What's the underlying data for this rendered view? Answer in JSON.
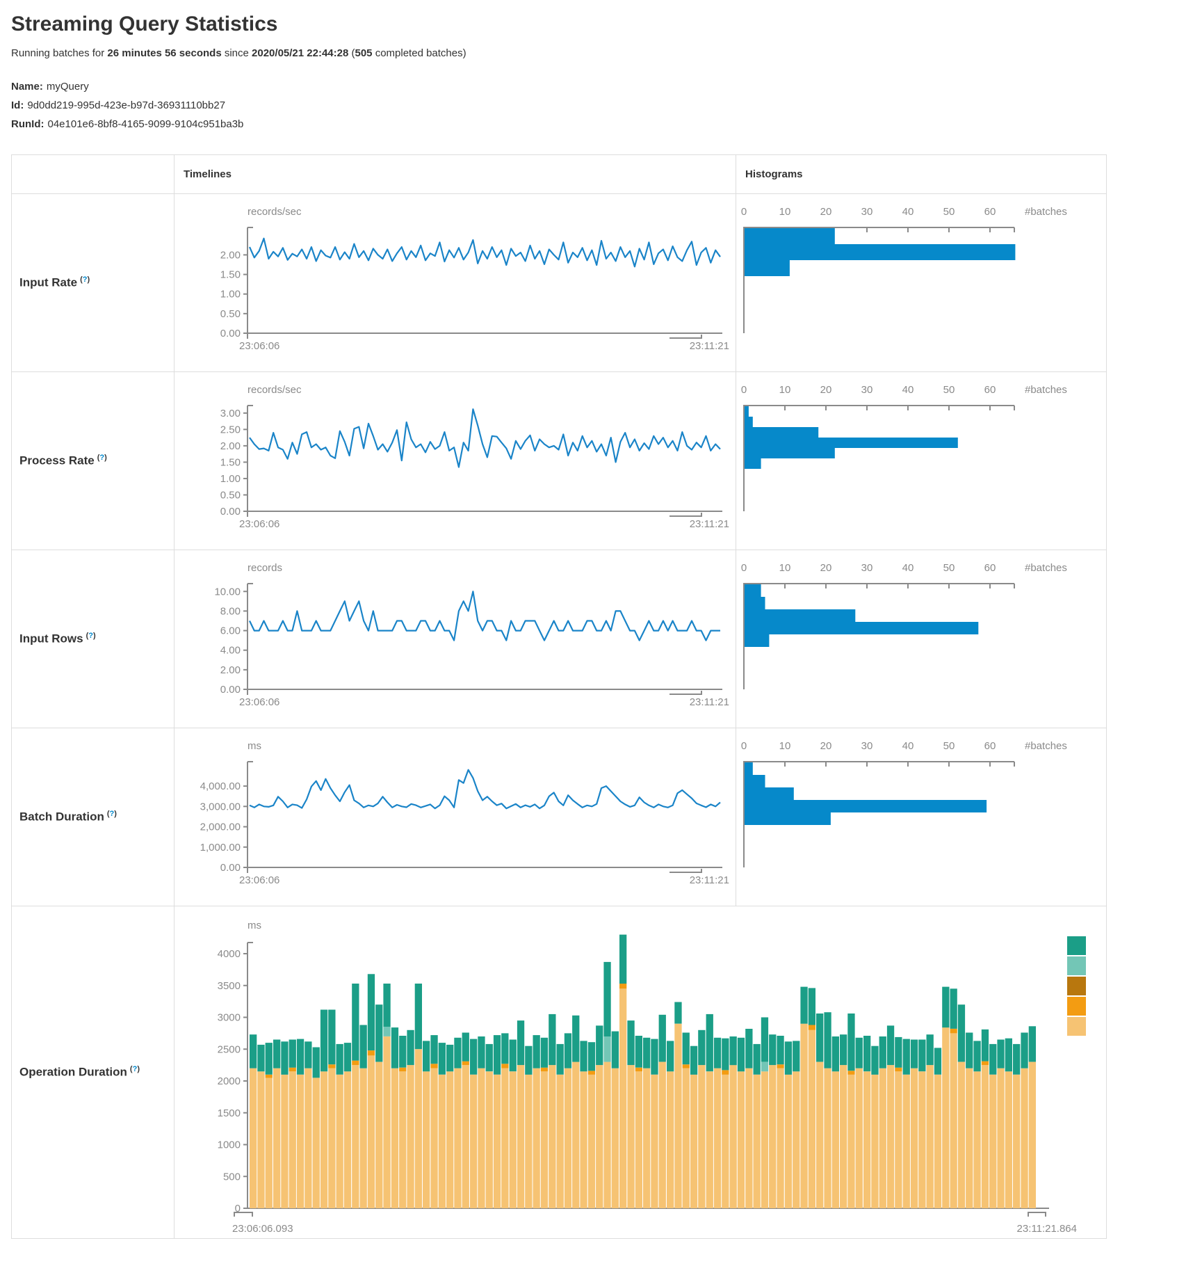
{
  "header": {
    "title": "Streaming Query Statistics",
    "running": {
      "prefix": "Running batches for ",
      "duration": "26 minutes 56 seconds",
      "since": " since ",
      "start_time": "2020/05/21 22:44:28",
      "paren_open": " (",
      "completed_count": "505",
      "suffix": " completed batches)"
    }
  },
  "meta": {
    "name_label": "Name:",
    "name_value": "myQuery",
    "id_label": "Id:",
    "id_value": "9d0dd219-995d-423e-b97d-36931110bb27",
    "runid_label": "RunId:",
    "runid_value": "04e101e6-8bf8-4165-9099-9104c951ba3b"
  },
  "table": {
    "timelines_header": "Timelines",
    "histograms_header": "Histograms"
  },
  "strings": {
    "help_open": "(",
    "help_q": "?",
    "help_close": ")"
  },
  "rows": [
    {
      "label": "Input Rate"
    },
    {
      "label": "Process Rate"
    },
    {
      "label": "Input Rows"
    },
    {
      "label": "Batch Duration"
    },
    {
      "label": "Operation Duration"
    }
  ],
  "colors": {
    "line": "#1a84c8",
    "hist_bar": "#0689ca",
    "axis": "#8a8a8a",
    "stack": [
      "#f6c373",
      "#f39c12",
      "#73c6b6",
      "#1b9e87"
    ],
    "legend": [
      "#1b9e87",
      "#73c6b6",
      "#b8770e",
      "#f39c12",
      "#f6c373"
    ]
  },
  "chart_data": [
    {
      "type": "line+histogram",
      "metric": "Input Rate",
      "unit": "records/sec",
      "x_start": "23:06:06",
      "x_end": "23:11:21",
      "ymax": 2.7,
      "yticks": [
        {
          "v": 2.0,
          "label": "2.00"
        },
        {
          "v": 1.5,
          "label": "1.50"
        },
        {
          "v": 1.0,
          "label": "1.00"
        },
        {
          "v": 0.5,
          "label": "0.50"
        },
        {
          "v": 0.0,
          "label": "0.00"
        }
      ],
      "timeline": [
        2.2,
        1.93,
        2.1,
        2.42,
        1.9,
        2.08,
        1.96,
        2.18,
        1.87,
        2.03,
        1.96,
        2.14,
        1.9,
        2.2,
        1.84,
        2.12,
        1.98,
        1.93,
        2.2,
        1.88,
        2.07,
        1.9,
        2.28,
        1.94,
        2.1,
        1.86,
        2.16,
        2.0,
        1.9,
        2.14,
        1.84,
        2.04,
        2.2,
        1.88,
        2.1,
        1.94,
        2.24,
        1.86,
        2.04,
        1.97,
        2.32,
        1.83,
        2.12,
        1.93,
        2.18,
        1.88,
        2.06,
        2.38,
        1.78,
        2.1,
        1.9,
        2.2,
        1.94,
        2.12,
        1.74,
        2.16,
        1.97,
        2.06,
        1.84,
        2.24,
        1.9,
        2.1,
        1.76,
        2.14,
        2.0,
        1.88,
        2.32,
        1.8,
        2.06,
        1.94,
        2.18,
        1.86,
        2.12,
        1.74,
        2.36,
        1.9,
        2.06,
        1.84,
        2.2,
        1.94,
        2.1,
        1.7,
        2.16,
        1.88,
        2.32,
        1.76,
        2.04,
        2.14,
        1.86,
        2.22,
        1.94,
        1.84,
        2.12,
        2.34,
        1.74,
        2.06,
        2.18,
        1.8,
        2.12,
        1.95
      ],
      "histogram": {
        "axis_ticks": [
          0,
          10,
          20,
          30,
          40,
          50,
          60
        ],
        "batches_label": "#batches",
        "bar_values": [
          22,
          66,
          11
        ],
        "bar_thickness": 23
      }
    },
    {
      "type": "line+histogram",
      "metric": "Process Rate",
      "unit": "records/sec",
      "x_start": "23:06:06",
      "x_end": "23:11:21",
      "ymax": 3.23,
      "yticks": [
        {
          "v": 3.0,
          "label": "3.00"
        },
        {
          "v": 2.5,
          "label": "2.50"
        },
        {
          "v": 2.0,
          "label": "2.00"
        },
        {
          "v": 1.5,
          "label": "1.50"
        },
        {
          "v": 1.0,
          "label": "1.00"
        },
        {
          "v": 0.5,
          "label": "0.50"
        },
        {
          "v": 0.0,
          "label": "0.00"
        }
      ],
      "timeline": [
        2.25,
        2.05,
        1.9,
        1.92,
        1.85,
        2.4,
        1.95,
        1.88,
        1.6,
        2.1,
        1.75,
        2.35,
        2.42,
        1.95,
        2.05,
        1.88,
        1.95,
        1.7,
        1.62,
        2.45,
        2.12,
        1.7,
        2.52,
        2.58,
        1.92,
        2.68,
        2.3,
        1.88,
        2.05,
        1.82,
        2.1,
        2.48,
        1.55,
        2.72,
        2.2,
        1.95,
        2.05,
        1.8,
        2.12,
        1.9,
        2.0,
        2.42,
        1.85,
        1.95,
        1.35,
        2.1,
        1.85,
        3.12,
        2.62,
        2.05,
        1.65,
        2.3,
        2.28,
        2.1,
        1.92,
        1.6,
        2.15,
        1.9,
        2.15,
        2.32,
        1.85,
        2.2,
        2.05,
        1.95,
        2.0,
        1.88,
        2.35,
        1.7,
        2.1,
        1.85,
        2.3,
        1.95,
        2.15,
        1.82,
        2.05,
        1.7,
        2.25,
        1.5,
        2.12,
        2.4,
        1.95,
        2.2,
        1.85,
        2.08,
        1.9,
        2.3,
        2.05,
        2.25,
        1.95,
        2.15,
        1.85,
        2.42,
        2.0,
        1.88,
        2.1,
        1.95,
        2.3,
        1.85,
        2.05,
        1.9
      ],
      "histogram": {
        "axis_ticks": [
          0,
          10,
          20,
          30,
          40,
          50,
          60
        ],
        "batches_label": "#batches",
        "bar_values": [
          1,
          2,
          18,
          52,
          22,
          4
        ],
        "bar_thickness": 15
      }
    },
    {
      "type": "line+histogram",
      "metric": "Input Rows",
      "unit": "records",
      "x_start": "23:06:06",
      "x_end": "23:11:21",
      "ymax": 10.8,
      "yticks": [
        {
          "v": 10,
          "label": "10.00"
        },
        {
          "v": 8,
          "label": "8.00"
        },
        {
          "v": 6,
          "label": "6.00"
        },
        {
          "v": 4,
          "label": "4.00"
        },
        {
          "v": 2,
          "label": "2.00"
        },
        {
          "v": 0,
          "label": "0.00"
        }
      ],
      "timeline": [
        7,
        6,
        6,
        7,
        6,
        6,
        6,
        7,
        6,
        6,
        8,
        6,
        6,
        6,
        7,
        6,
        6,
        6,
        7,
        8,
        9,
        7,
        8,
        9,
        7,
        6,
        8,
        6,
        6,
        6,
        6,
        7,
        7,
        6,
        6,
        6,
        7,
        7,
        6,
        6,
        7,
        6,
        6,
        5,
        8,
        9,
        8,
        10,
        7,
        6,
        7,
        7,
        6,
        6,
        5,
        7,
        6,
        6,
        7,
        7,
        7,
        6,
        5,
        6,
        7,
        6,
        6,
        7,
        6,
        6,
        6,
        7,
        7,
        6,
        6,
        7,
        6,
        8,
        8,
        7,
        6,
        6,
        5,
        6,
        7,
        6,
        6,
        7,
        6,
        7,
        6,
        6,
        6,
        7,
        6,
        6,
        5,
        6,
        6,
        6
      ],
      "histogram": {
        "axis_ticks": [
          0,
          10,
          20,
          30,
          40,
          50,
          60
        ],
        "batches_label": "#batches",
        "bar_values": [
          4,
          5,
          27,
          57,
          6
        ],
        "bar_thickness": 18
      }
    },
    {
      "type": "line+histogram",
      "metric": "Batch Duration",
      "unit": "ms",
      "x_start": "23:06:06",
      "x_end": "23:11:21",
      "ymax": 5200,
      "yticks": [
        {
          "v": 4000,
          "label": "4,000.00"
        },
        {
          "v": 3000,
          "label": "3,000.00"
        },
        {
          "v": 2000,
          "label": "2,000.00"
        },
        {
          "v": 1000,
          "label": "1,000.00"
        },
        {
          "v": 0,
          "label": "0.00"
        }
      ],
      "timeline": [
        3050,
        2950,
        3100,
        3000,
        2980,
        3050,
        3480,
        3250,
        2950,
        3100,
        3060,
        2920,
        3350,
        3980,
        4250,
        3800,
        4350,
        3900,
        3550,
        3250,
        3700,
        4050,
        3300,
        3150,
        2950,
        3050,
        3000,
        3150,
        3480,
        3200,
        2950,
        3080,
        3000,
        2960,
        3120,
        3060,
        2950,
        3020,
        3100,
        2900,
        3060,
        3500,
        3300,
        2950,
        4300,
        4150,
        4800,
        4400,
        3750,
        3300,
        3480,
        3250,
        3060,
        3140,
        2900,
        3010,
        3120,
        2950,
        3060,
        2980,
        3100,
        2900,
        3050,
        3500,
        3680,
        3250,
        3050,
        3550,
        3300,
        3120,
        2950,
        3050,
        3000,
        3120,
        3900,
        4000,
        3750,
        3500,
        3250,
        3100,
        2980,
        3050,
        3450,
        3200,
        3050,
        2950,
        3100,
        3000,
        2950,
        3050,
        3650,
        3800,
        3600,
        3400,
        3150,
        3050,
        2960,
        3100,
        3000,
        3200
      ],
      "histogram": {
        "axis_ticks": [
          0,
          10,
          20,
          30,
          40,
          50,
          60
        ],
        "batches_label": "#batches",
        "bar_values": [
          2,
          5,
          12,
          59,
          21
        ],
        "bar_thickness": 18
      }
    },
    {
      "type": "stacked-bar",
      "metric": "Operation Duration",
      "unit": "ms",
      "x_start": "23:06:06.093",
      "x_end": "23:11:21.864",
      "ymax": 4175,
      "yticks": [
        {
          "v": 4000,
          "label": "4000"
        },
        {
          "v": 3500,
          "label": "3500"
        },
        {
          "v": 3000,
          "label": "3000"
        },
        {
          "v": 2500,
          "label": "2500"
        },
        {
          "v": 2000,
          "label": "2000"
        },
        {
          "v": 1500,
          "label": "1500"
        },
        {
          "v": 1000,
          "label": "1000"
        },
        {
          "v": 500,
          "label": "500"
        },
        {
          "v": 0,
          "label": "0"
        }
      ],
      "bars": [
        [
          2200,
          0,
          0,
          530
        ],
        [
          2150,
          0,
          0,
          420
        ],
        [
          2050,
          50,
          0,
          500
        ],
        [
          2200,
          0,
          0,
          450
        ],
        [
          2100,
          0,
          0,
          520
        ],
        [
          2150,
          60,
          0,
          440
        ],
        [
          2100,
          0,
          0,
          560
        ],
        [
          2200,
          0,
          0,
          420
        ],
        [
          2050,
          0,
          0,
          480
        ],
        [
          2150,
          0,
          0,
          970
        ],
        [
          2200,
          60,
          0,
          860
        ],
        [
          2100,
          0,
          0,
          480
        ],
        [
          2150,
          0,
          0,
          450
        ],
        [
          2250,
          70,
          0,
          1210
        ],
        [
          2200,
          0,
          0,
          680
        ],
        [
          2400,
          80,
          0,
          1200
        ],
        [
          2300,
          0,
          0,
          900
        ],
        [
          2700,
          0,
          150,
          680
        ],
        [
          2200,
          0,
          0,
          640
        ],
        [
          2150,
          60,
          0,
          500
        ],
        [
          2250,
          0,
          0,
          550
        ],
        [
          2500,
          0,
          0,
          1030
        ],
        [
          2150,
          0,
          0,
          480
        ],
        [
          2200,
          70,
          0,
          450
        ],
        [
          2100,
          0,
          0,
          500
        ],
        [
          2150,
          0,
          0,
          420
        ],
        [
          2200,
          0,
          0,
          480
        ],
        [
          2250,
          60,
          0,
          450
        ],
        [
          2100,
          0,
          0,
          560
        ],
        [
          2200,
          0,
          0,
          500
        ],
        [
          2150,
          0,
          0,
          430
        ],
        [
          2100,
          0,
          0,
          620
        ],
        [
          2200,
          70,
          0,
          480
        ],
        [
          2150,
          0,
          0,
          500
        ],
        [
          2250,
          0,
          0,
          700
        ],
        [
          2100,
          0,
          0,
          450
        ],
        [
          2200,
          0,
          0,
          520
        ],
        [
          2150,
          60,
          0,
          470
        ],
        [
          2250,
          0,
          0,
          800
        ],
        [
          2100,
          0,
          0,
          480
        ],
        [
          2200,
          0,
          0,
          550
        ],
        [
          2300,
          0,
          0,
          730
        ],
        [
          2150,
          0,
          0,
          480
        ],
        [
          2100,
          60,
          0,
          450
        ],
        [
          2250,
          0,
          0,
          620
        ],
        [
          2300,
          0,
          400,
          1170
        ],
        [
          2200,
          0,
          0,
          580
        ],
        [
          3450,
          80,
          0,
          770
        ],
        [
          2250,
          0,
          0,
          700
        ],
        [
          2150,
          60,
          0,
          500
        ],
        [
          2200,
          0,
          0,
          480
        ],
        [
          2100,
          0,
          0,
          560
        ],
        [
          2300,
          0,
          0,
          740
        ],
        [
          2150,
          0,
          0,
          480
        ],
        [
          2900,
          0,
          0,
          340
        ],
        [
          2200,
          60,
          0,
          500
        ],
        [
          2100,
          0,
          0,
          450
        ],
        [
          2250,
          0,
          0,
          550
        ],
        [
          2150,
          0,
          0,
          900
        ],
        [
          2200,
          0,
          0,
          480
        ],
        [
          2100,
          70,
          0,
          500
        ],
        [
          2250,
          0,
          0,
          450
        ],
        [
          2150,
          0,
          0,
          530
        ],
        [
          2200,
          0,
          0,
          620
        ],
        [
          2100,
          0,
          0,
          480
        ],
        [
          2150,
          0,
          150,
          700
        ],
        [
          2250,
          0,
          0,
          480
        ],
        [
          2200,
          60,
          0,
          450
        ],
        [
          2100,
          0,
          0,
          520
        ],
        [
          2150,
          0,
          0,
          480
        ],
        [
          2900,
          0,
          0,
          580
        ],
        [
          2800,
          80,
          0,
          580
        ],
        [
          2300,
          0,
          0,
          760
        ],
        [
          2200,
          0,
          0,
          880
        ],
        [
          2150,
          0,
          0,
          550
        ],
        [
          2250,
          0,
          0,
          480
        ],
        [
          2100,
          60,
          0,
          900
        ],
        [
          2200,
          0,
          0,
          480
        ],
        [
          2150,
          0,
          0,
          560
        ],
        [
          2100,
          0,
          0,
          450
        ],
        [
          2200,
          0,
          0,
          500
        ],
        [
          2250,
          0,
          0,
          620
        ],
        [
          2150,
          60,
          0,
          480
        ],
        [
          2100,
          0,
          0,
          560
        ],
        [
          2200,
          0,
          0,
          450
        ],
        [
          2150,
          0,
          0,
          500
        ],
        [
          2250,
          0,
          0,
          480
        ],
        [
          2100,
          0,
          0,
          420
        ],
        [
          2840,
          0,
          0,
          640
        ],
        [
          2750,
          70,
          0,
          630
        ],
        [
          2300,
          0,
          0,
          900
        ],
        [
          2200,
          0,
          0,
          560
        ],
        [
          2150,
          0,
          0,
          480
        ],
        [
          2250,
          60,
          0,
          500
        ],
        [
          2100,
          0,
          0,
          480
        ],
        [
          2200,
          0,
          0,
          450
        ],
        [
          2150,
          0,
          0,
          520
        ],
        [
          2100,
          0,
          0,
          480
        ],
        [
          2200,
          0,
          0,
          560
        ],
        [
          2300,
          0,
          0,
          560
        ]
      ]
    }
  ]
}
